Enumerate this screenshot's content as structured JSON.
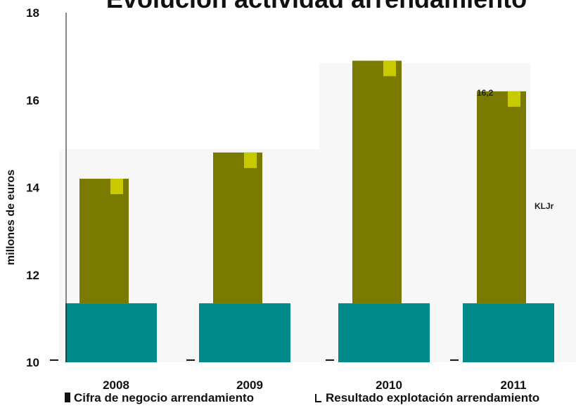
{
  "chart_data": {
    "type": "bar",
    "title": "Evolución actividad arrendamiento",
    "ylabel": "millones de euros",
    "xlabel": "",
    "categories": [
      "2008",
      "2009",
      "2010",
      "2011"
    ],
    "ylim": [
      10,
      18
    ],
    "yticks": [
      10,
      12,
      14,
      16,
      18
    ],
    "grid": false,
    "legend_position": "bottom",
    "series": [
      {
        "name": "Cifra de negocio arrendamiento",
        "values": [
          14.2,
          14.8,
          16.9,
          16.2
        ]
      },
      {
        "name": "Resultado explotación arrendamiento",
        "values": [
          10.05,
          10.05,
          10.05,
          10.05
        ]
      }
    ],
    "annotations": [
      "16,2",
      "KLJr"
    ]
  },
  "colors": {
    "olive": "#7a7a00",
    "teal": "#008a8a",
    "yellow": "#c9c900",
    "axis": "#111111"
  }
}
